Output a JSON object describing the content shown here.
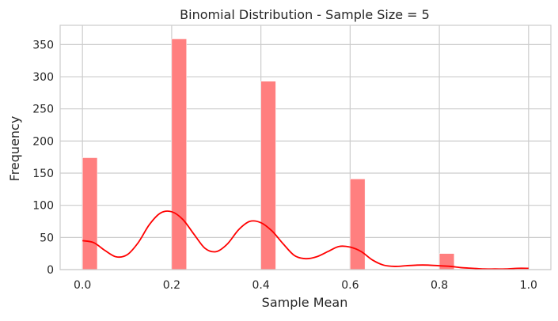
{
  "chart_data": {
    "type": "bar",
    "title": "Binomial Distribution - Sample Size = 5",
    "xlabel": "Sample Mean",
    "ylabel": "Frequency",
    "xlim": [
      -0.05,
      1.05
    ],
    "ylim": [
      0,
      380
    ],
    "xticks": [
      0.0,
      0.2,
      0.4,
      0.6,
      0.8,
      1.0
    ],
    "xtick_labels": [
      "0.0",
      "0.2",
      "0.4",
      "0.6",
      "0.8",
      "1.0"
    ],
    "yticks": [
      0,
      50,
      100,
      150,
      200,
      250,
      300,
      350
    ],
    "ytick_labels": [
      "0",
      "50",
      "100",
      "150",
      "200",
      "250",
      "300",
      "350"
    ],
    "grid": true,
    "bar_color": "#ff7f7f",
    "bars": [
      {
        "x0": 0.0,
        "x1": 0.0333,
        "value": 174
      },
      {
        "x0": 0.2,
        "x1": 0.2333,
        "value": 359
      },
      {
        "x0": 0.4,
        "x1": 0.4333,
        "value": 293
      },
      {
        "x0": 0.6,
        "x1": 0.6333,
        "value": 141
      },
      {
        "x0": 0.8,
        "x1": 0.8333,
        "value": 25
      }
    ],
    "kde": {
      "color": "#ff0000",
      "x": [
        0.0,
        0.025,
        0.05,
        0.075,
        0.1,
        0.125,
        0.15,
        0.175,
        0.2,
        0.225,
        0.25,
        0.275,
        0.3,
        0.325,
        0.35,
        0.375,
        0.4,
        0.425,
        0.45,
        0.475,
        0.5,
        0.525,
        0.55,
        0.575,
        0.6,
        0.625,
        0.65,
        0.675,
        0.7,
        0.725,
        0.75,
        0.775,
        0.8,
        0.825,
        0.85,
        0.875,
        0.9,
        0.925,
        0.95,
        0.975,
        1.0
      ],
      "y": [
        45,
        42,
        30,
        20,
        23,
        42,
        70,
        88,
        90,
        78,
        55,
        33,
        28,
        40,
        62,
        75,
        73,
        60,
        40,
        22,
        17,
        20,
        28,
        36,
        35,
        28,
        15,
        7,
        5,
        6,
        7,
        7,
        6,
        5,
        3,
        2,
        1,
        1,
        1,
        2,
        2
      ]
    }
  }
}
